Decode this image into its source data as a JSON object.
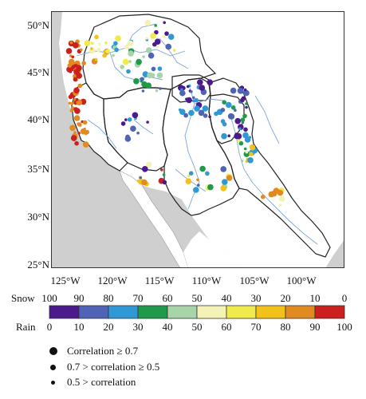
{
  "map": {
    "lat_labels": [
      "50°N",
      "45°N",
      "40°N",
      "35°N",
      "30°N",
      "25°N"
    ],
    "lon_labels": [
      "125°W",
      "120°W",
      "115°W",
      "110°W",
      "105°W",
      "100°W"
    ],
    "colors": {
      "ocean": "#cfcfcf",
      "land": "#ffffff",
      "boundary": "#222222",
      "river": "#7ea6d8"
    }
  },
  "colorbar": {
    "snow_title": "Snow",
    "rain_title": "Rain",
    "snow_labels": [
      "100",
      "90",
      "80",
      "70",
      "60",
      "50",
      "40",
      "30",
      "20",
      "10",
      "0"
    ],
    "rain_labels": [
      "0",
      "10",
      "20",
      "30",
      "40",
      "50",
      "60",
      "70",
      "80",
      "90",
      "100"
    ],
    "colors": [
      "#4b1a8c",
      "#4f64b4",
      "#2f99d6",
      "#1e9a4a",
      "#a7d4a8",
      "#f5f2b6",
      "#f0eb4a",
      "#f2c21a",
      "#e08a20",
      "#cc1f1f"
    ]
  },
  "legend": {
    "items": [
      {
        "label": "Correlation ≥ 0.7",
        "size": "large"
      },
      {
        "label": "0.7 > correlation ≥ 0.5",
        "size": "medium"
      },
      {
        "label": "0.5 > correlation",
        "size": "small"
      }
    ]
  }
}
